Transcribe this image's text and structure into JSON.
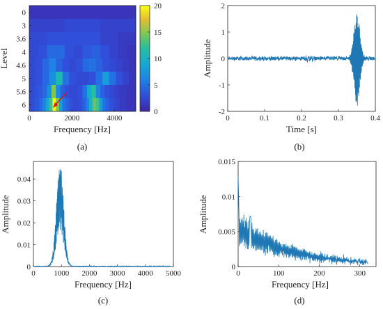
{
  "colors": {
    "line": "#1f77b4",
    "arrow": "#e01010",
    "axis": "#222222"
  },
  "chart_data": [
    {
      "panel": "(a)",
      "type": "heatmap",
      "xlabel": "Frequency [Hz]",
      "ylabel": "Level",
      "xlim": [
        0,
        5000
      ],
      "xticks": [
        "0",
        "2000",
        "4000"
      ],
      "yticks": [
        "0",
        "3",
        "3.6",
        "4",
        "4.6",
        "5",
        "5.6",
        "6"
      ],
      "colorbar": {
        "min": 0,
        "max": 20,
        "ticks": [
          "0",
          "5",
          "10",
          "15",
          "20"
        ]
      },
      "annotation": "red arrow pointing at peak near 1000 Hz, level 6",
      "rows": [
        [
          1.0
        ],
        [
          2.0,
          2.5,
          2.0
        ],
        [
          2.5,
          3.0,
          3.0,
          3.0,
          2.0,
          1.5
        ],
        [
          2.5,
          3.0,
          4.5,
          4.5,
          3.0,
          2.5,
          3.5,
          4.0,
          3.0,
          2.0,
          1.5,
          1.0
        ],
        [
          2.5,
          3.0,
          4.5,
          6.0,
          4.0,
          3.0,
          2.5,
          3.0,
          4.5,
          5.0,
          4.0,
          3.0,
          2.5,
          2.0,
          1.5,
          1.0
        ],
        [
          2.5,
          3.0,
          4.5,
          7.0,
          11.0,
          5.0,
          3.0,
          2.5,
          2.5,
          3.0,
          5.0,
          8.0,
          5.0,
          3.0,
          2.0,
          1.0
        ],
        [
          2.5,
          3.0,
          3.5,
          4.5,
          7.0,
          15.0,
          6.5,
          4.0,
          3.0,
          2.5,
          2.5,
          3.0,
          5.0,
          9.0,
          12.0,
          6.0,
          4.0,
          3.0,
          2.5,
          2.0,
          1.5,
          1.5,
          1.0,
          1.0
        ],
        [
          2.5,
          3.0,
          3.5,
          4.5,
          6.0,
          9.0,
          13.0,
          20.0,
          15.0,
          8.0,
          5.0,
          4.0,
          3.0,
          2.5,
          2.5,
          3.0,
          4.0,
          6.0,
          10.0,
          14.0,
          13.0,
          8.0,
          5.0,
          4.0,
          3.0,
          2.5,
          2.0,
          1.5,
          1.5,
          1.0,
          1.0,
          1.0
        ]
      ]
    },
    {
      "panel": "(b)",
      "type": "line",
      "xlabel": "Time [s]",
      "ylabel": "Amplitude",
      "xlim": [
        0,
        0.4
      ],
      "ylim": [
        -2,
        2
      ],
      "xticks": [
        "0",
        "0.1",
        "0.2",
        "0.3",
        "0.4"
      ],
      "yticks": [
        "-2",
        "-1",
        "0",
        "1",
        "2"
      ],
      "noise_amplitude": 0.12,
      "burst": {
        "center": 0.35,
        "peak": 1.75,
        "trough": -1.8,
        "width": 0.008
      }
    },
    {
      "panel": "(c)",
      "type": "line",
      "xlabel": "Frequency [Hz]",
      "ylabel": "Amplitude",
      "xlim": [
        0,
        5000
      ],
      "ylim": [
        0,
        0.048
      ],
      "xticks": [
        "0",
        "1000",
        "2000",
        "3000",
        "4000",
        "5000"
      ],
      "yticks": [
        "0",
        "0.01",
        "0.02",
        "0.03",
        "0.04"
      ],
      "peak": {
        "center": 950,
        "height": 0.047,
        "spread": 130
      }
    },
    {
      "panel": "(d)",
      "type": "line",
      "xlabel": "Frequency [Hz]",
      "ylabel": "Amplitude",
      "xlim": [
        0,
        340
      ],
      "ylim": [
        0,
        0.015
      ],
      "xticks": [
        "0",
        "100",
        "200",
        "300"
      ],
      "yticks": [
        "0",
        "0.005",
        "0.01",
        "0.015"
      ],
      "start": 0.013,
      "range": [
        0,
        320
      ]
    }
  ]
}
